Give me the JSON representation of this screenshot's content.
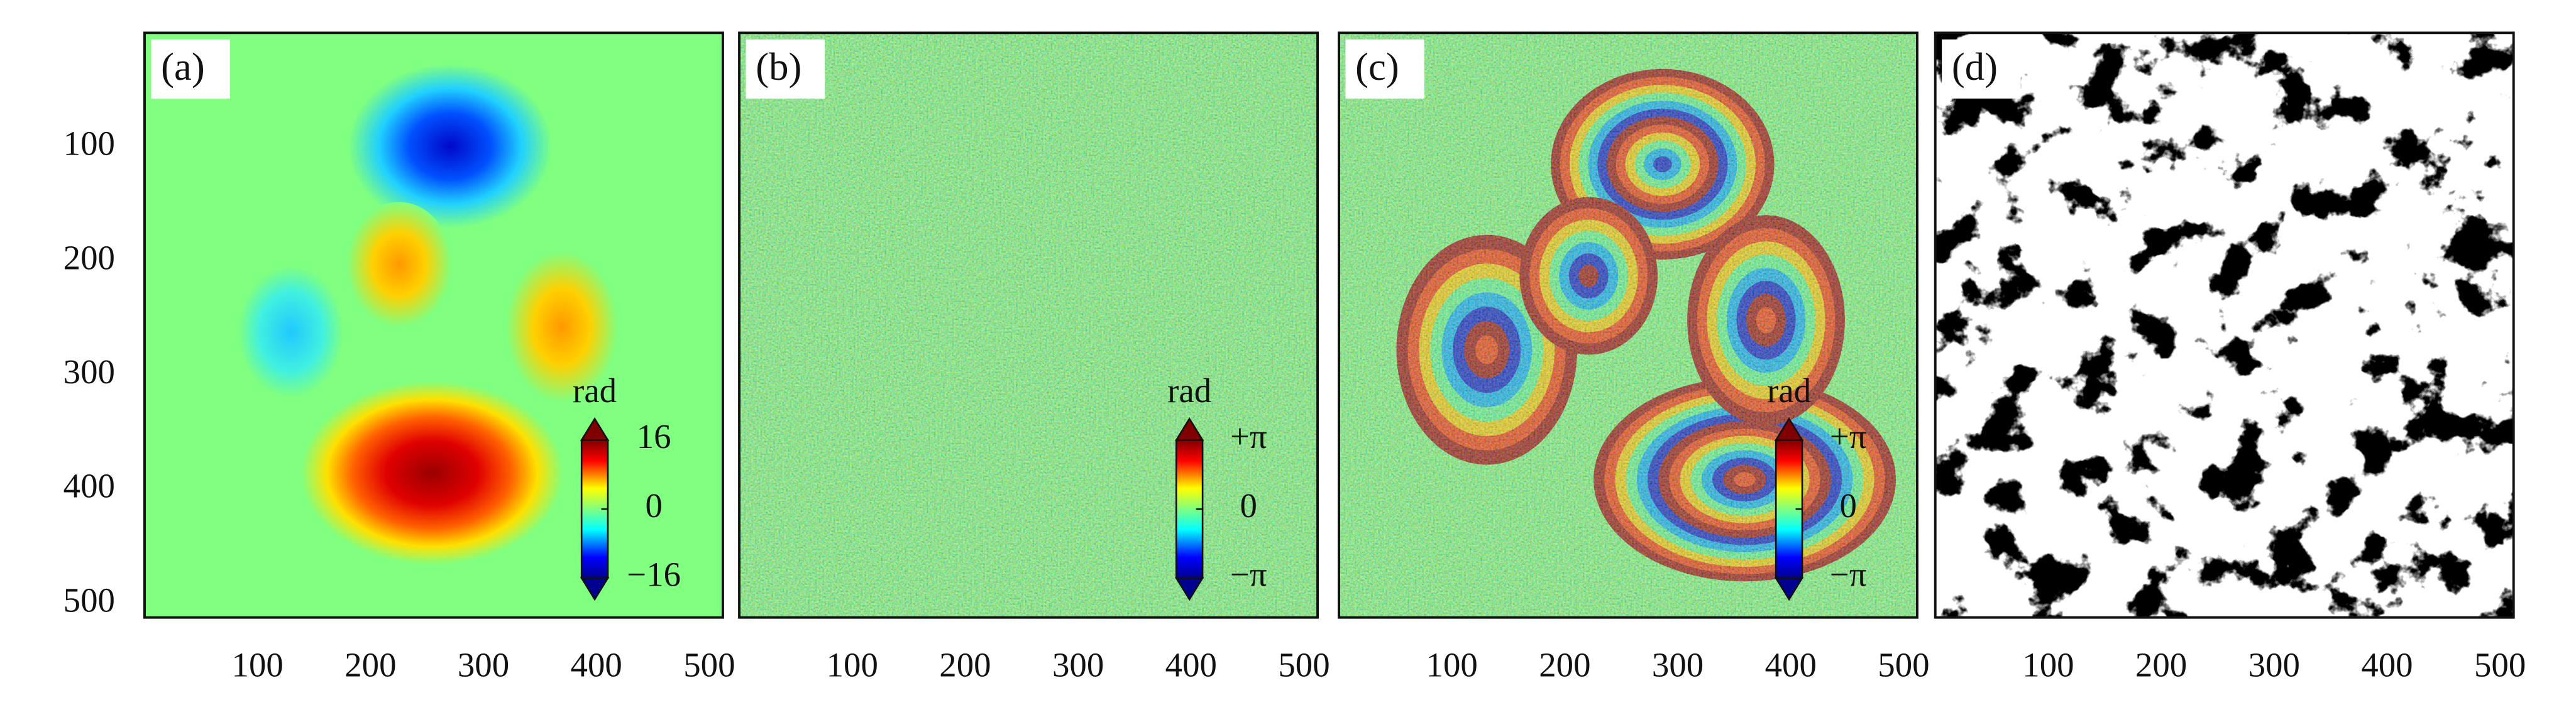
{
  "chart_data": [
    {
      "type": "heatmap",
      "panel_label": "(a)",
      "xlim": [
        0,
        512
      ],
      "xticks": [
        100,
        200,
        300,
        400,
        500
      ],
      "ylim": [
        0,
        512
      ],
      "yticks": [
        100,
        200,
        300,
        400,
        500
      ],
      "colorbar": {
        "label": "rad",
        "lim": [
          -16,
          16
        ],
        "ticks": [
          16,
          0,
          {
            "value": -16,
            "label": "−16"
          }
        ]
      }
    },
    {
      "type": "heatmap",
      "panel_label": "(b)",
      "xlim": [
        0,
        512
      ],
      "xticks": [
        100,
        200,
        300,
        400,
        500
      ],
      "ylim": [
        0,
        512
      ],
      "colorbar": {
        "label": "rad",
        "lim": [
          -3.14159,
          3.14159
        ],
        "ticks": [
          {
            "value": 3.14159,
            "label": "+π"
          },
          0,
          {
            "value": -3.14159,
            "label": "−π"
          }
        ]
      }
    },
    {
      "type": "heatmap",
      "panel_label": "(c)",
      "xlim": [
        0,
        512
      ],
      "xticks": [
        100,
        200,
        300,
        400,
        500
      ],
      "ylim": [
        0,
        512
      ],
      "colorbar": {
        "label": "rad",
        "lim": [
          -3.14159,
          3.14159
        ],
        "ticks": [
          {
            "value": 3.14159,
            "label": "+π"
          },
          0,
          {
            "value": -3.14159,
            "label": "−π"
          }
        ]
      }
    },
    {
      "type": "heatmap",
      "panel_label": "(d)",
      "xlim": [
        0,
        512
      ],
      "xticks": [
        100,
        200,
        300,
        400,
        500
      ],
      "ylim": [
        0,
        512
      ]
    }
  ]
}
